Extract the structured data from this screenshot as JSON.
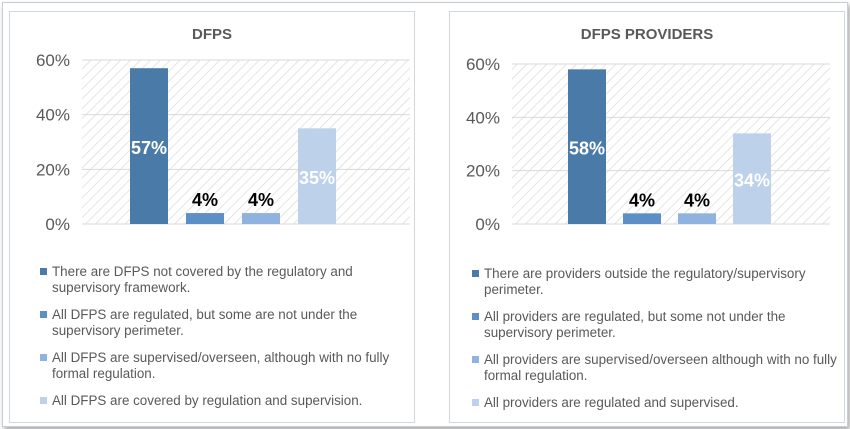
{
  "chart_data": [
    {
      "type": "bar",
      "title": "DFPS",
      "categories": [
        "There are DFPS not covered by the regulatory and supervisory framework.",
        "All DFPS are regulated, but some are not under the supervisory perimeter.",
        "All DFPS are supervised/overseen, although with no fully formal regulation.",
        "All DFPS are covered by regulation and supervision."
      ],
      "values": [
        57,
        4,
        4,
        35
      ],
      "data_labels": [
        "57%",
        "4%",
        "4%",
        "35%"
      ],
      "colors": [
        "#4a7aa8",
        "#5b8fc6",
        "#8fb3de",
        "#bdd1ea"
      ],
      "yticks": [
        "0%",
        "20%",
        "40%",
        "60%"
      ],
      "ylim": [
        0,
        60
      ],
      "legend": "bottom",
      "grid": true
    },
    {
      "type": "bar",
      "title": "DFPS PROVIDERS",
      "categories": [
        "There are providers outside the regulatory/supervisory perimeter.",
        "All providers are regulated, but some not under the supervisory perimeter.",
        "All providers are supervised/overseen although with no fully formal regulation.",
        "All providers are regulated and supervised."
      ],
      "values": [
        58,
        4,
        4,
        34
      ],
      "data_labels": [
        "58%",
        "4%",
        "4%",
        "34%"
      ],
      "colors": [
        "#4a7aa8",
        "#5b8fc6",
        "#8fb3de",
        "#bdd1ea"
      ],
      "yticks": [
        "0%",
        "20%",
        "40%",
        "60%"
      ],
      "ylim": [
        0,
        60
      ],
      "legend": "bottom",
      "grid": true
    }
  ]
}
